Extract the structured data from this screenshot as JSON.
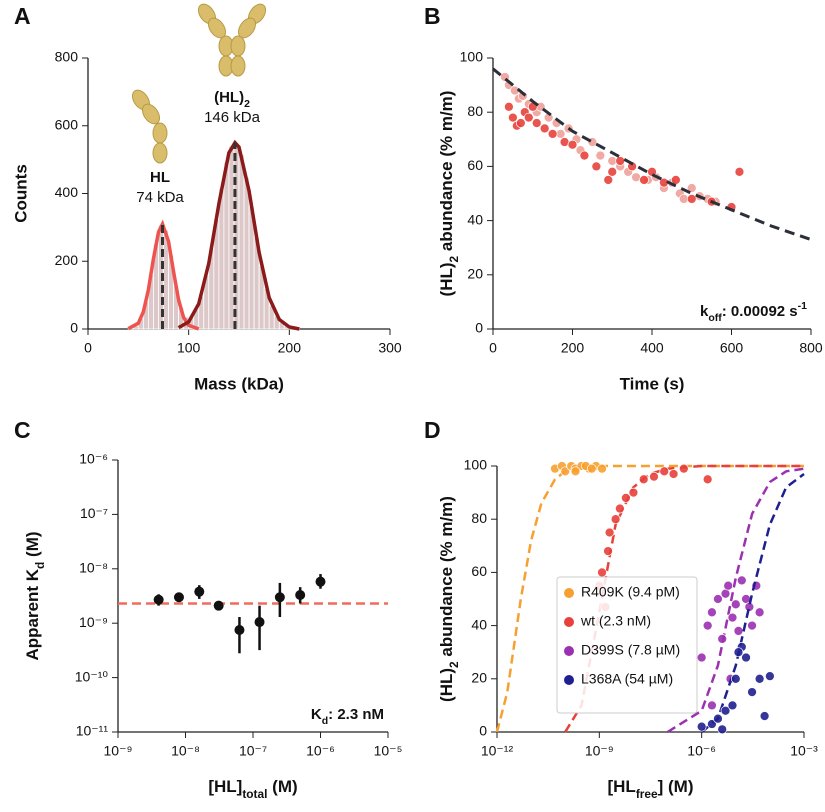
{
  "chart_data": [
    {
      "panel_label": "A",
      "type": "histogram",
      "xlabel": "Mass (kDa)",
      "ylabel": "Counts",
      "bins": [
        40,
        45,
        50,
        55,
        60,
        65,
        70,
        75,
        80,
        85,
        90,
        95,
        100,
        105,
        110,
        115,
        120,
        125,
        130,
        135,
        140,
        145,
        150,
        155,
        160,
        165,
        170,
        175,
        180,
        185,
        190,
        195,
        200,
        205,
        210
      ],
      "counts": [
        2,
        9,
        31,
        80,
        160,
        251,
        307,
        292,
        218,
        128,
        63,
        35,
        35,
        57,
        97,
        157,
        235,
        324,
        415,
        492,
        540,
        548,
        515,
        448,
        361,
        270,
        186,
        119,
        70,
        38,
        19,
        9,
        4,
        1
      ],
      "color": "#dcc8c8",
      "fits": [
        {
          "color": "#ef5350",
          "x": [
            40,
            50,
            55,
            60,
            65,
            70,
            74,
            80,
            85,
            90,
            95,
            100,
            110
          ],
          "values": [
            1,
            17,
            51,
            116,
            207,
            286,
            310,
            259,
            169,
            86,
            34,
            11,
            0
          ]
        },
        {
          "color": "#8b1a1a",
          "x": [
            90,
            100,
            110,
            120,
            130,
            140,
            146,
            150,
            160,
            170,
            180,
            190,
            200,
            210
          ],
          "values": [
            4,
            21,
            74,
            194,
            370,
            520,
            550,
            537,
            407,
            226,
            92,
            28,
            6,
            0
          ]
        }
      ],
      "peaks": [
        74,
        146
      ],
      "annotations": [
        {
          "name": [
            {
              "text": "HL"
            }
          ],
          "mass": "74 kDa"
        },
        {
          "name": [
            {
              "text": "(HL)"
            },
            {
              "text": "2",
              "shift": "sub"
            }
          ],
          "mass": "146 kDa"
        }
      ],
      "xlim": [
        0,
        300
      ],
      "ylim": [
        0,
        800
      ],
      "xticks": [
        0,
        100,
        200,
        300
      ],
      "yticks": [
        0,
        200,
        400,
        600,
        800
      ]
    },
    {
      "panel_label": "B",
      "type": "scatter",
      "xlabel": "Time (s)",
      "ylabel": [
        {
          "text": "(HL)"
        },
        {
          "text": "2",
          "shift": "sub"
        },
        {
          "text": " abundance (% m/m)"
        }
      ],
      "series": [
        {
          "color": "#f0a09a",
          "x": [
            30,
            40,
            55,
            65,
            75,
            90,
            110,
            120,
            140,
            160,
            170,
            190,
            210,
            220,
            250,
            270,
            300,
            320,
            340,
            360,
            390,
            410,
            430,
            450,
            470,
            480,
            500,
            520,
            540,
            560
          ],
          "values": [
            93,
            90,
            88,
            85,
            86,
            83,
            80,
            82,
            78,
            76,
            72,
            74,
            70,
            66,
            69,
            64,
            62,
            60,
            58,
            56,
            55,
            56,
            52,
            54,
            50,
            48,
            52,
            49,
            48,
            47
          ]
        },
        {
          "color": "#e8413b",
          "x": [
            40,
            50,
            60,
            70,
            80,
            90,
            100,
            110,
            130,
            150,
            180,
            200,
            230,
            260,
            290,
            300,
            320,
            350,
            380,
            400,
            430,
            460,
            500,
            550,
            600,
            620
          ],
          "values": [
            82,
            78,
            75,
            76,
            80,
            78,
            82,
            76,
            74,
            72,
            69,
            68,
            64,
            60,
            55,
            58,
            62,
            60,
            55,
            58,
            54,
            55,
            48,
            47,
            45,
            58
          ]
        }
      ],
      "fit": {
        "color": "#2b2f3a",
        "x": [
          0,
          100,
          200,
          300,
          400,
          500,
          600,
          700,
          800
        ],
        "values": [
          96,
          84,
          73,
          65,
          57,
          50,
          44,
          38,
          33
        ]
      },
      "annotation": [
        {
          "text": "k"
        },
        {
          "text": "off",
          "shift": "sub"
        },
        {
          "text": ": 0.00092 s"
        },
        {
          "text": "-1",
          "shift": "super"
        }
      ],
      "xlim": [
        0,
        800
      ],
      "ylim": [
        0,
        100
      ],
      "xticks": [
        0,
        200,
        400,
        600,
        800
      ],
      "yticks": [
        0,
        20,
        40,
        60,
        80,
        100
      ]
    },
    {
      "panel_label": "C",
      "type": "scatter",
      "xscale": "log",
      "yscale": "log",
      "xlabel": [
        {
          "text": "[HL]"
        },
        {
          "text": "total",
          "shift": "sub"
        },
        {
          "text": " (M)"
        }
      ],
      "ylabel": [
        {
          "text": "Apparent K"
        },
        {
          "text": "d",
          "shift": "sub"
        },
        {
          "text": " (M)"
        }
      ],
      "series": [
        {
          "color": "#111111",
          "x": [
            4e-09,
            8e-09,
            1.6e-08,
            3.1e-08,
            6.3e-08,
            1.25e-07,
            2.5e-07,
            5e-07,
            1e-06
          ],
          "values": [
            2.7e-09,
            3e-09,
            3.8e-09,
            2.1e-09,
            7.5e-10,
            1.05e-09,
            3e-09,
            3.3e-09,
            5.8e-09
          ],
          "lower": [
            2.1e-09,
            2.5e-09,
            2.8e-09,
            2e-09,
            2.8e-10,
            3.2e-10,
            1.3e-09,
            2.3e-09,
            4.3e-09
          ],
          "upper": [
            3.4e-09,
            3.5e-09,
            5e-09,
            2.2e-09,
            1.3e-09,
            2.1e-09,
            5.5e-09,
            4.6e-09,
            8e-09
          ]
        }
      ],
      "hline": 2.3e-09,
      "hline_color": "#f06b5f",
      "annotation": [
        {
          "text": "K"
        },
        {
          "text": "d",
          "shift": "sub"
        },
        {
          "text": ": 2.3 nM"
        }
      ],
      "xlim": [
        1e-09,
        1e-05
      ],
      "ylim": [
        1e-11,
        1e-06
      ],
      "xticks": [
        {
          "value": 1e-09,
          "label": "10⁻⁹"
        },
        {
          "value": 1e-08,
          "label": "10⁻⁸"
        },
        {
          "value": 1e-07,
          "label": "10⁻⁷"
        },
        {
          "value": 1e-06,
          "label": "10⁻⁶"
        },
        {
          "value": 1e-05,
          "label": "10⁻⁵"
        }
      ],
      "yticks": [
        {
          "value": 1e-11,
          "label": "10⁻¹¹"
        },
        {
          "value": 1e-10,
          "label": "10⁻¹⁰"
        },
        {
          "value": 1e-09,
          "label": "10⁻⁹"
        },
        {
          "value": 1e-08,
          "label": "10⁻⁸"
        },
        {
          "value": 1e-07,
          "label": "10⁻⁷"
        },
        {
          "value": 1e-06,
          "label": "10⁻⁶"
        }
      ]
    },
    {
      "panel_label": "D",
      "type": "scatter",
      "xscale": "log",
      "legend": "lower left",
      "xlabel": [
        {
          "text": "[HL"
        },
        {
          "text": "free",
          "shift": "sub"
        },
        {
          "text": "] (M)"
        }
      ],
      "ylabel": [
        {
          "text": "(HL)"
        },
        {
          "text": "2",
          "shift": "sub"
        },
        {
          "text": " abundance (% m/m)"
        }
      ],
      "series": [
        {
          "name": "R409K (9.4 pM)",
          "color": "#f7a030",
          "x": [
            5e-11,
            8e-11,
            1e-10,
            1.5e-10,
            2e-10,
            3e-10,
            5e-10,
            8e-10,
            1.2e-09,
            2e-10,
            4e-10,
            6e-10
          ],
          "values": [
            99,
            100,
            98,
            100,
            99,
            100,
            99,
            100,
            99,
            98,
            100,
            99
          ],
          "fit": {
            "x": [
              1e-12,
              2e-12,
              5e-12,
              1e-11,
              2e-11,
              5e-11,
              1e-10,
              1e-09,
              1e-06,
              0.001
            ],
            "values": [
              0,
              15,
              50,
              72,
              86,
              95,
              98,
              100,
              100,
              100
            ]
          }
        },
        {
          "name": "wt (2.3 nM)",
          "color": "#e8403a",
          "x": [
            1e-09,
            1.2e-09,
            1.5e-09,
            1.8e-09,
            2e-09,
            3e-09,
            4e-09,
            6e-09,
            1e-08,
            2e-08,
            4e-08,
            8e-08,
            1.5e-07,
            3e-07,
            1.5e-06
          ],
          "values": [
            55,
            60,
            47,
            68,
            75,
            80,
            84,
            88,
            90,
            95,
            96,
            98,
            97,
            99,
            95
          ],
          "fit": {
            "x": [
              1e-10,
              3e-10,
              1e-09,
              3e-09,
              1e-08,
              3e-08,
              1e-07,
              1e-06,
              0.001
            ],
            "values": [
              0,
              10,
              45,
              78,
              92,
              97,
              99,
              100,
              100
            ]
          }
        },
        {
          "name": "D399S (7.8 µM)",
          "color": "#9b30b0",
          "x": [
            1e-06,
            1.5e-06,
            2e-06,
            3e-06,
            4e-06,
            5e-06,
            6e-06,
            8e-06,
            1e-05,
            1.2e-05,
            1.5e-05,
            2e-05,
            2.5e-05,
            3e-05,
            4e-05,
            5e-05,
            2e-06,
            7e-06
          ],
          "values": [
            28,
            40,
            45,
            50,
            35,
            52,
            55,
            43,
            48,
            38,
            57,
            50,
            47,
            40,
            55,
            45,
            10,
            20
          ],
          "fit": {
            "x": [
              1e-07,
              1e-06,
              3e-06,
              1e-05,
              3e-05,
              0.0001,
              0.0003,
              0.001
            ],
            "values": [
              0,
              8,
              25,
              58,
              82,
              94,
              98,
              99
            ]
          }
        },
        {
          "name": "L368A (54 µM)",
          "color": "#1f1f8f",
          "x": [
            1e-06,
            2e-06,
            3e-06,
            5e-06,
            8e-06,
            1e-05,
            1.5e-05,
            2e-05,
            3e-05,
            5e-05,
            7e-05,
            0.0001,
            4e-06,
            1.2e-05
          ],
          "values": [
            2,
            3,
            5,
            8,
            10,
            20,
            32,
            28,
            15,
            20,
            6,
            21,
            1,
            30
          ],
          "fit": {
            "x": [
              1e-06,
              3e-06,
              1e-05,
              3e-05,
              0.0001,
              0.0003,
              0.001
            ],
            "values": [
              0,
              5,
              25,
              52,
              78,
              92,
              97
            ]
          }
        }
      ],
      "xlim": [
        1e-12,
        0.001
      ],
      "ylim": [
        0,
        100
      ],
      "xticks": [
        {
          "value": 1e-12,
          "label": "10⁻¹²"
        },
        {
          "value": 1e-09,
          "label": "10⁻⁹"
        },
        {
          "value": 1e-06,
          "label": "10⁻⁶"
        },
        {
          "value": 0.001,
          "label": "10⁻³"
        }
      ],
      "yticks": [
        0,
        20,
        40,
        60,
        80,
        100
      ]
    }
  ]
}
